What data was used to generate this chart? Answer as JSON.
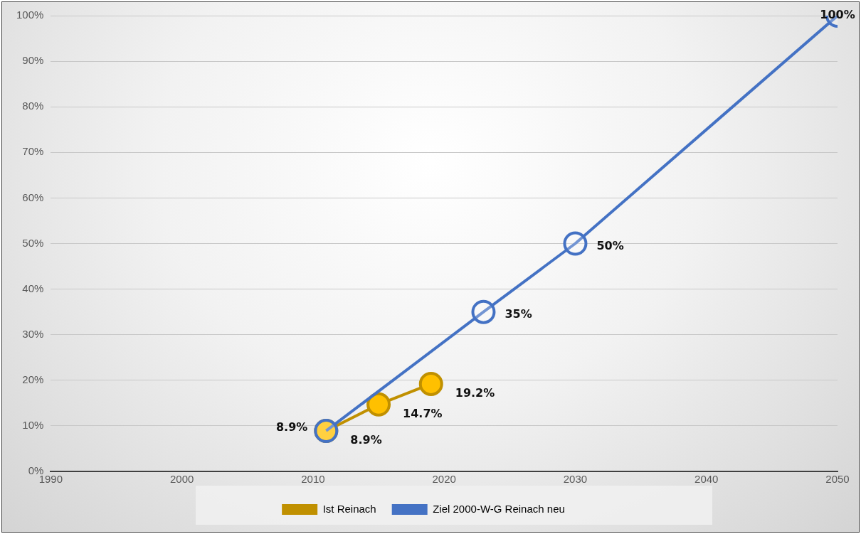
{
  "chart_data": {
    "type": "line",
    "series": [
      {
        "name": "Ist Reinach",
        "color": "#c09000",
        "x": [
          2011,
          2015,
          2019
        ],
        "values": [
          8.9,
          14.7,
          19.2
        ],
        "value_labels": [
          "8.9%",
          "14.7%",
          "19.2%"
        ]
      },
      {
        "name": "Ziel 2000-W-G Reinach neu",
        "color": "#4472c4",
        "x": [
          2011,
          2023,
          2030,
          2050
        ],
        "values": [
          8.9,
          35,
          50,
          100
        ],
        "value_labels": [
          "8.9%",
          "35%",
          "50%",
          "100%"
        ]
      }
    ],
    "xlim": [
      1990,
      2050
    ],
    "xticks": [
      1990,
      2000,
      2010,
      2020,
      2030,
      2040,
      2050
    ],
    "ylim": [
      0,
      100
    ],
    "yticks": [
      {
        "value": 0,
        "label": "0%"
      },
      {
        "value": 10,
        "label": "10%"
      },
      {
        "value": 20,
        "label": "20%"
      },
      {
        "value": 30,
        "label": "30%"
      },
      {
        "value": 40,
        "label": "40%"
      },
      {
        "value": 50,
        "label": "50%"
      },
      {
        "value": 60,
        "label": "60%"
      },
      {
        "value": 70,
        "label": "70%"
      },
      {
        "value": 80,
        "label": "80%"
      },
      {
        "value": 90,
        "label": "90%"
      },
      {
        "value": 100,
        "label": "100%"
      }
    ],
    "grid": "y",
    "legend": "bottom",
    "marker": "circle"
  }
}
